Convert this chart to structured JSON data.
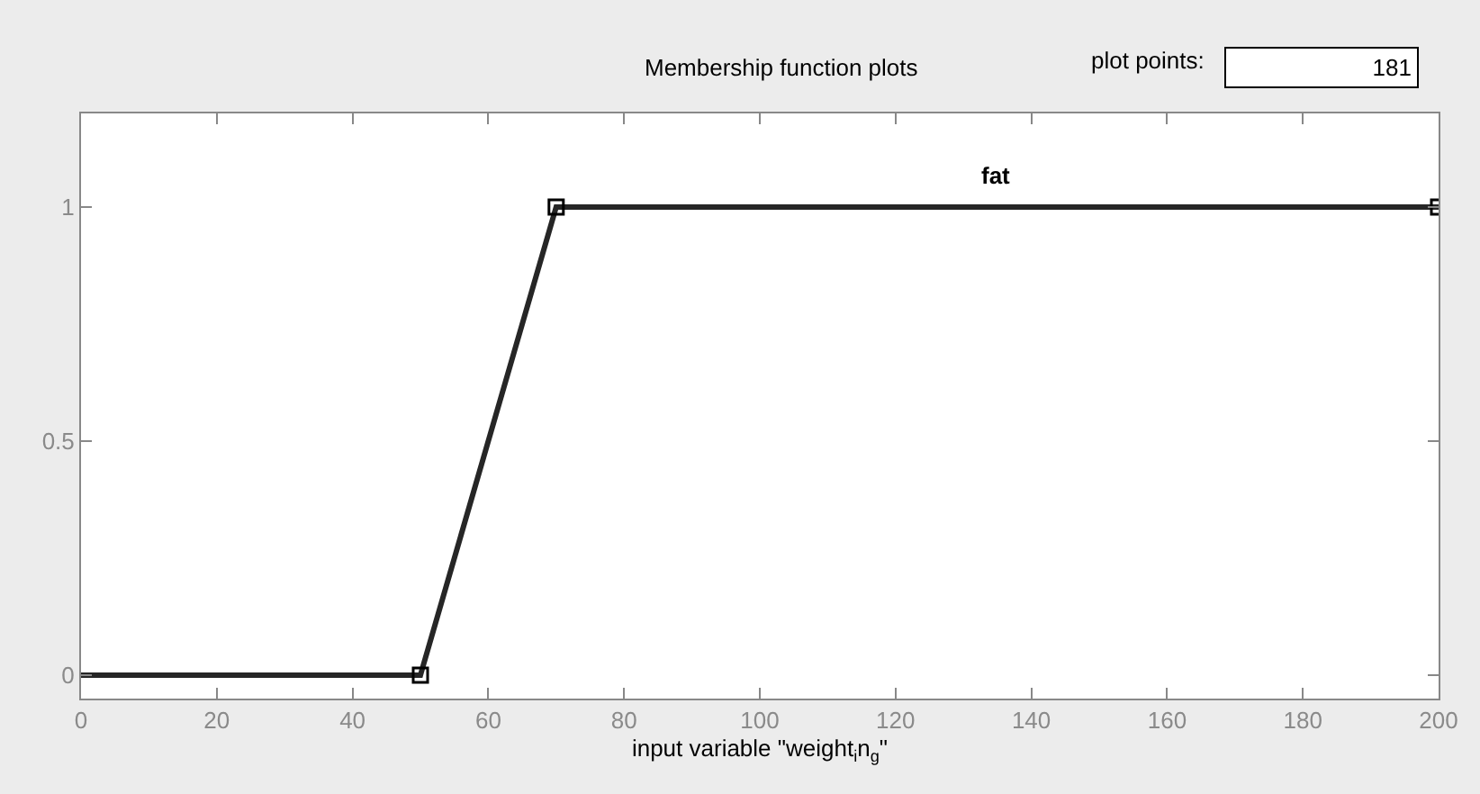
{
  "chart_data": {
    "type": "line",
    "title": "Membership function plots",
    "xlabel": "input variable \"weight$_{i}$n$_{g}$\"",
    "annotations": [
      "plot points:",
      "181"
    ],
    "x": [
      0,
      50,
      70,
      200
    ],
    "series": [
      {
        "name": "fat",
        "color": "#262626",
        "marker": "none",
        "values": [
          0,
          0,
          1,
          1
        ]
      },
      {
        "type": "scatter",
        "color": "#000000",
        "marker": "square",
        "x": [
          50,
          70,
          200
        ],
        "values": [
          0,
          1,
          1
        ]
      }
    ],
    "xlim": [
      0,
      200
    ],
    "xticks": [
      0,
      20,
      40,
      60,
      80,
      100,
      120,
      140,
      160,
      180,
      200
    ],
    "ylim": [
      -0.05,
      1.2
    ],
    "yticks": [
      0,
      0.5,
      1
    ]
  }
}
